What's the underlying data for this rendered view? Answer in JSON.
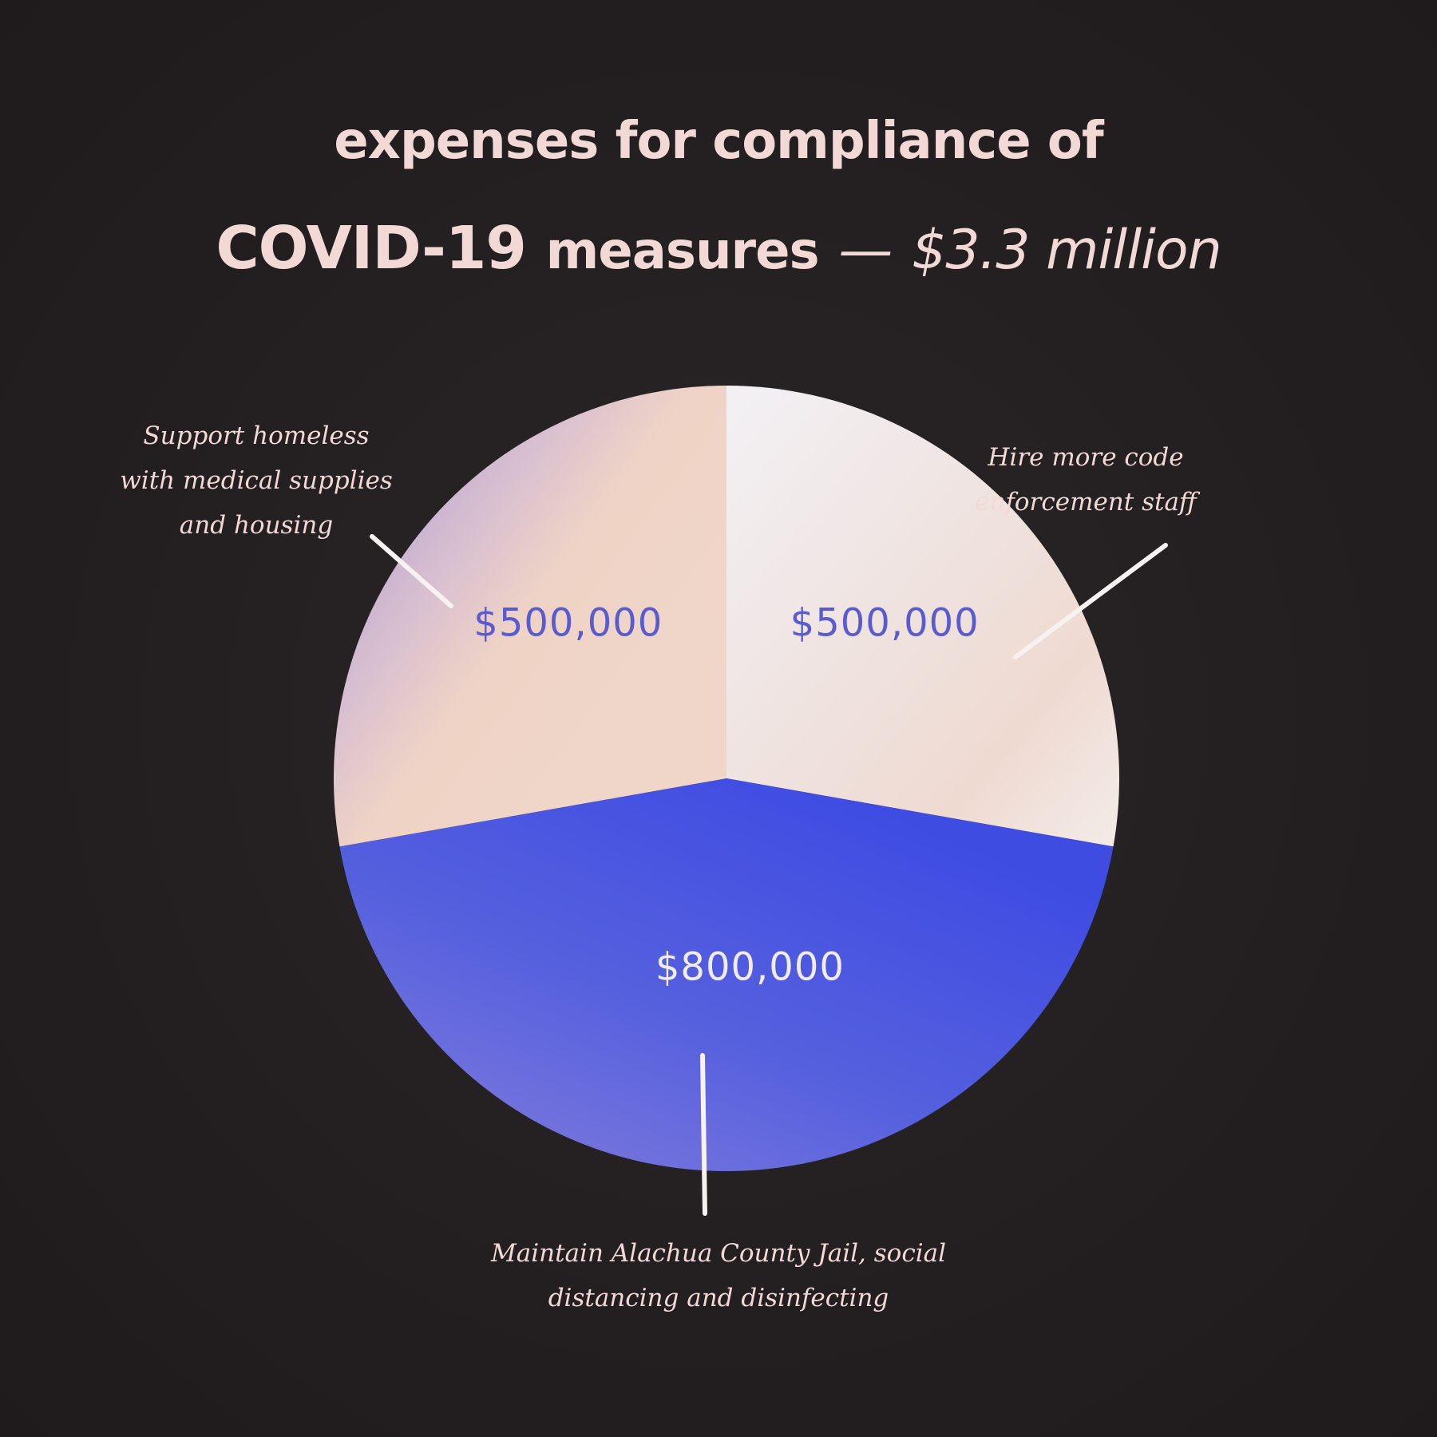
{
  "title": {
    "line1": "expenses for compliance of",
    "line2_bold": "COVID-19",
    "line2_measures": "measures",
    "line2_dash": "—",
    "line2_total": "$3.3 million"
  },
  "chart_data": {
    "type": "pie",
    "title": "expenses for compliance of COVID-19 measures — $3.3 million",
    "slices": [
      {
        "label_lines": [
          "Hire more code",
          "enforcement staff"
        ],
        "value": 500000,
        "value_label": "$500,000",
        "color": "#f1ece9",
        "label_color": "#5a5bd0"
      },
      {
        "label_lines": [
          "Maintain Alachua County Jail, social",
          "distancing and disinfecting"
        ],
        "value": 800000,
        "value_label": "$800,000",
        "color": "#4a52e0",
        "label_color": "#f1ece9"
      },
      {
        "label_lines": [
          "Support homeless",
          "with medical supplies",
          "and housing"
        ],
        "value": 500000,
        "value_label": "$500,000",
        "color": "#edd3c6",
        "label_color": "#5a5bd0"
      }
    ]
  },
  "colors": {
    "background": "#231f21",
    "text": "#f2d9d6",
    "leader_line": "#f7f2f0"
  }
}
